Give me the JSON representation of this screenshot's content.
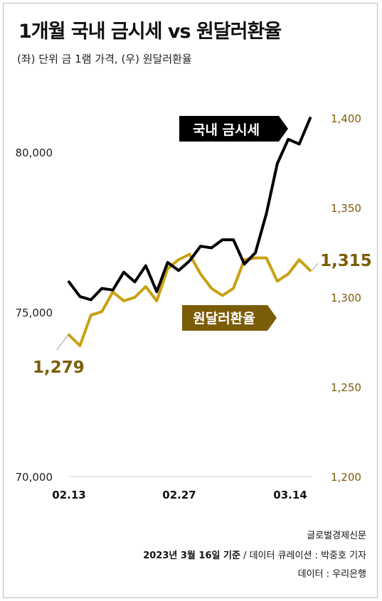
{
  "title": "1개월 국내 금시세 vs 원달러환율",
  "subtitle": "(좌) 단위 금 1램 가격, (우) 원달러환율",
  "footer": {
    "source_name": "글로벌경제신문",
    "basis_date": "2023년 3월 16일 기준",
    "credit": " / 데이터 큐레이션 : 박중호 기자",
    "data_source": "데이터 : 우리은행"
  },
  "colors": {
    "gold_series": "#000000",
    "fx_series": "#c9a012",
    "fx_label_bg": "#7b5c08",
    "right_axis_text": "#7b5c08",
    "gold_label_bg": "#000000"
  },
  "chart_data": {
    "type": "line",
    "x_tick_labels": [
      "02.13",
      "02.27",
      "03.14"
    ],
    "left_axis": {
      "ticks": [
        "70,000",
        "75,000",
        "80,000"
      ],
      "ylim": [
        70000,
        80500
      ]
    },
    "right_axis": {
      "ticks": [
        "1,200",
        "1,250",
        "1,300",
        "1,350",
        "1,400"
      ],
      "ylim": [
        1200,
        1420
      ]
    },
    "series": [
      {
        "name": "국내 금시세",
        "axis": "left",
        "values": [
          76000,
          75550,
          75450,
          75800,
          75750,
          76300,
          76000,
          76500,
          75700,
          76600,
          76350,
          76650,
          77100,
          77050,
          77300,
          77300,
          76550,
          76900,
          78100,
          79650,
          80400,
          80250,
          81050
        ]
      },
      {
        "name": "원달러환율",
        "axis": "right",
        "values": [
          1279,
          1273,
          1290,
          1292,
          1303,
          1298,
          1300,
          1306,
          1298,
          1316,
          1321,
          1324,
          1313,
          1305,
          1301,
          1305,
          1321,
          1322,
          1322,
          1309,
          1313,
          1321,
          1315
        ]
      }
    ],
    "annotations": {
      "fx_start": "1,279",
      "fx_end": "1,315"
    }
  }
}
